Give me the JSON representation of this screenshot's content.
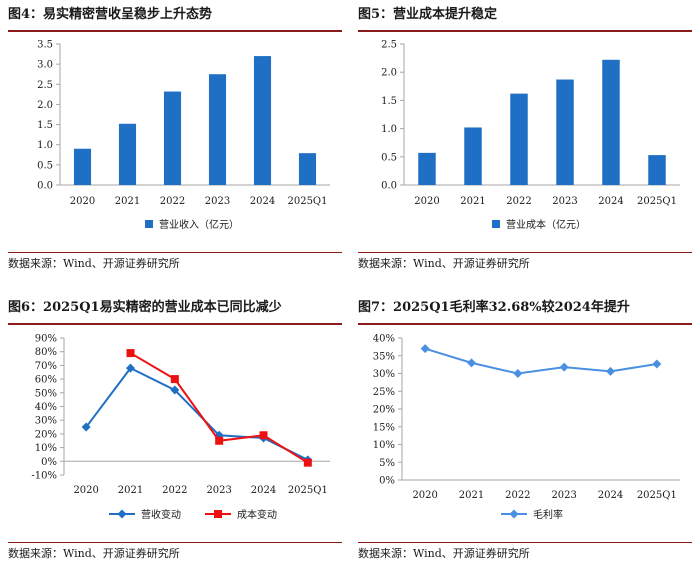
{
  "panels": {
    "fig4": {
      "title": "图4：易实精密营收呈稳步上升态势",
      "source": "数据来源：Wind、开源证券研究所"
    },
    "fig5": {
      "title": "图5：营业成本提升稳定",
      "source": "数据来源：Wind、开源证券研究所"
    },
    "fig6": {
      "title": "图6：2025Q1易实精密的营业成本已同比减少",
      "source": "数据来源：Wind、开源证券研究所"
    },
    "fig7": {
      "title": "图7：2025Q1毛利率32.68%较2024年提升",
      "source": "数据来源：Wind、开源证券研究所"
    }
  },
  "colors": {
    "blue": "#1f6fc4",
    "red": "#ee1111",
    "axis": "#a6a6a6",
    "rule": "#8b1a1a"
  },
  "chart_data": [
    {
      "id": "fig4",
      "type": "bar",
      "categories": [
        "2020",
        "2021",
        "2022",
        "2023",
        "2024",
        "2025Q1"
      ],
      "series": [
        {
          "name": "营业收入（亿元）",
          "values": [
            0.9,
            1.52,
            2.32,
            2.75,
            3.2,
            0.79
          ],
          "color": "#1f6fc4"
        }
      ],
      "ylim": [
        0,
        3.5
      ],
      "yticks": [
        "0.0",
        "0.5",
        "1.0",
        "1.5",
        "2.0",
        "2.5",
        "3.0",
        "3.5"
      ],
      "legend": "bottom-center"
    },
    {
      "id": "fig5",
      "type": "bar",
      "categories": [
        "2020",
        "2021",
        "2022",
        "2023",
        "2024",
        "2025Q1"
      ],
      "series": [
        {
          "name": "营业成本（亿元）",
          "values": [
            0.57,
            1.02,
            1.62,
            1.87,
            2.22,
            0.53
          ],
          "color": "#1f6fc4"
        }
      ],
      "ylim": [
        0,
        2.5
      ],
      "yticks": [
        "0.0",
        "0.5",
        "1.0",
        "1.5",
        "2.0",
        "2.5"
      ],
      "legend": "bottom-center"
    },
    {
      "id": "fig6",
      "type": "line",
      "categories": [
        "2020",
        "2021",
        "2022",
        "2023",
        "2024",
        "2025Q1"
      ],
      "series": [
        {
          "name": "营收变动",
          "values": [
            25,
            68,
            52,
            19,
            17,
            1
          ],
          "color": "#1f6fc4",
          "marker": "diamond"
        },
        {
          "name": "成本变动",
          "values": [
            null,
            79,
            60,
            15,
            19,
            -1
          ],
          "color": "#ee1111",
          "marker": "square"
        }
      ],
      "ylim": [
        -10,
        90
      ],
      "yticks": [
        "-10%",
        "0%",
        "10%",
        "20%",
        "30%",
        "40%",
        "50%",
        "60%",
        "70%",
        "80%",
        "90%"
      ],
      "legend": "bottom-center"
    },
    {
      "id": "fig7",
      "type": "line",
      "categories": [
        "2020",
        "2021",
        "2022",
        "2023",
        "2024",
        "2025Q1"
      ],
      "series": [
        {
          "name": "毛利率",
          "values": [
            37,
            33,
            30,
            31.8,
            30.6,
            32.68
          ],
          "color": "#4a90e2",
          "marker": "diamond"
        }
      ],
      "ylim": [
        0,
        40
      ],
      "yticks": [
        "0%",
        "5%",
        "10%",
        "15%",
        "20%",
        "25%",
        "30%",
        "35%",
        "40%"
      ],
      "legend": "bottom-center"
    }
  ]
}
